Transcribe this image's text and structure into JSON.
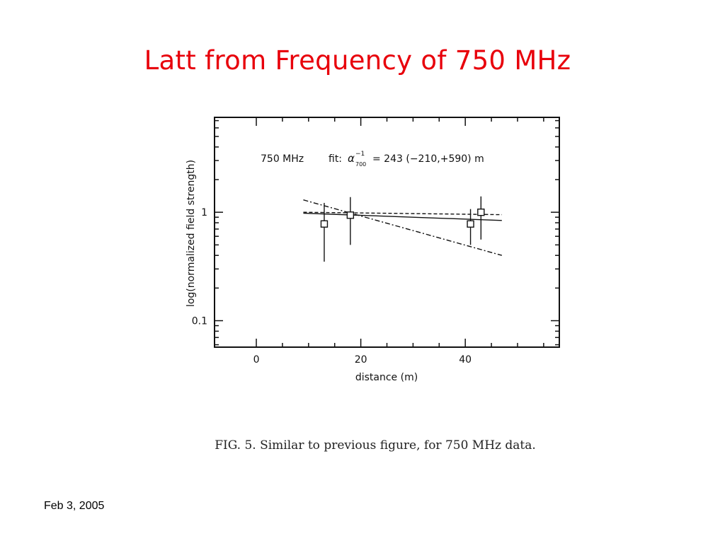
{
  "slide": {
    "title": "Latt from Frequency of 750 MHz",
    "caption": "FIG. 5.  Similar to previous figure, for 750 MHz data.",
    "footer_date": "Feb 3, 2005"
  },
  "chart_data": {
    "type": "scatter",
    "annotation": {
      "band": "750 MHz",
      "fit_prefix": "fit:",
      "fit_symbol": "α",
      "fit_superscript": "−1",
      "fit_subscript": "700",
      "fit_value": "= 243 (−210,+590) m"
    },
    "xlabel": "distance (m)",
    "ylabel": "log(normalized field strength)",
    "xlim": [
      -8,
      58
    ],
    "ylim": [
      0.057,
      7.5
    ],
    "yscale": "log",
    "xticks": [
      0,
      20,
      40
    ],
    "xtick_labels": [
      "0",
      "20",
      "40"
    ],
    "yticks": [
      0.1,
      1
    ],
    "ytick_labels": [
      "0.1",
      "1"
    ],
    "grid": false,
    "points": [
      {
        "x": 13,
        "y": 0.78,
        "ylow": 0.35,
        "yhigh": 1.22
      },
      {
        "x": 18,
        "y": 0.94,
        "ylow": 0.5,
        "yhigh": 1.38
      },
      {
        "x": 41,
        "y": 0.78,
        "ylow": 0.5,
        "yhigh": 1.07
      },
      {
        "x": 43,
        "y": 1.0,
        "ylow": 0.56,
        "yhigh": 1.4
      }
    ],
    "fit_lines": [
      {
        "style": "solid",
        "x": [
          9,
          47
        ],
        "y": [
          0.98,
          0.84
        ]
      },
      {
        "style": "dashed",
        "x": [
          9,
          47
        ],
        "y": [
          1.0,
          0.95
        ]
      },
      {
        "style": "dash-dot",
        "x": [
          9,
          47
        ],
        "y": [
          1.3,
          0.4
        ]
      }
    ]
  }
}
